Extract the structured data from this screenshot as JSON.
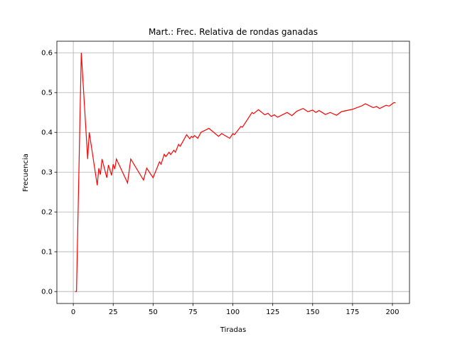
{
  "chart_data": {
    "type": "line",
    "title": "Mart.: Frec. Relativa de rondas ganadas",
    "xlabel": "Tiradas",
    "ylabel": "Frecuencia",
    "x": [
      1,
      2,
      5,
      9,
      10,
      15,
      16,
      17,
      18,
      21,
      22,
      24,
      25,
      26,
      27,
      34,
      36,
      44,
      46,
      50,
      54,
      55,
      57,
      58,
      60,
      61,
      63,
      64,
      66,
      67,
      71,
      73,
      74,
      75,
      76,
      78,
      80,
      85,
      91,
      93,
      98,
      100,
      101,
      105,
      106,
      112,
      113,
      116,
      120,
      122,
      124,
      126,
      128,
      134,
      137,
      140,
      144,
      147,
      150,
      152,
      154,
      158,
      161,
      165,
      168,
      175,
      181,
      183,
      188,
      190,
      192,
      196,
      198,
      201,
      202
    ],
    "series": [
      {
        "color": "#ff0000",
        "values": [
          0,
          0,
          0.6,
          0.333,
          0.4,
          0.267,
          0.31,
          0.294,
          0.333,
          0.286,
          0.318,
          0.292,
          0.32,
          0.308,
          0.333,
          0.273,
          0.333,
          0.28,
          0.31,
          0.286,
          0.326,
          0.32,
          0.345,
          0.339,
          0.35,
          0.344,
          0.355,
          0.35,
          0.37,
          0.365,
          0.394,
          0.384,
          0.39,
          0.387,
          0.392,
          0.385,
          0.4,
          0.41,
          0.39,
          0.397,
          0.385,
          0.397,
          0.394,
          0.415,
          0.413,
          0.45,
          0.447,
          0.457,
          0.444,
          0.448,
          0.44,
          0.444,
          0.438,
          0.45,
          0.442,
          0.453,
          0.46,
          0.452,
          0.456,
          0.45,
          0.455,
          0.445,
          0.45,
          0.443,
          0.452,
          0.458,
          0.467,
          0.472,
          0.462,
          0.465,
          0.46,
          0.468,
          0.466,
          0.475,
          0.474
        ]
      }
    ],
    "xlim": [
      -10.3,
      210.7
    ],
    "ylim": [
      -0.03,
      0.629
    ],
    "xticks": [
      0,
      25,
      50,
      75,
      100,
      125,
      150,
      175,
      200
    ],
    "yticks": [
      {
        "value": 0,
        "label": "0.0"
      },
      0.1,
      0.2,
      0.3,
      0.4,
      0.5,
      0.6
    ],
    "grid": true
  }
}
